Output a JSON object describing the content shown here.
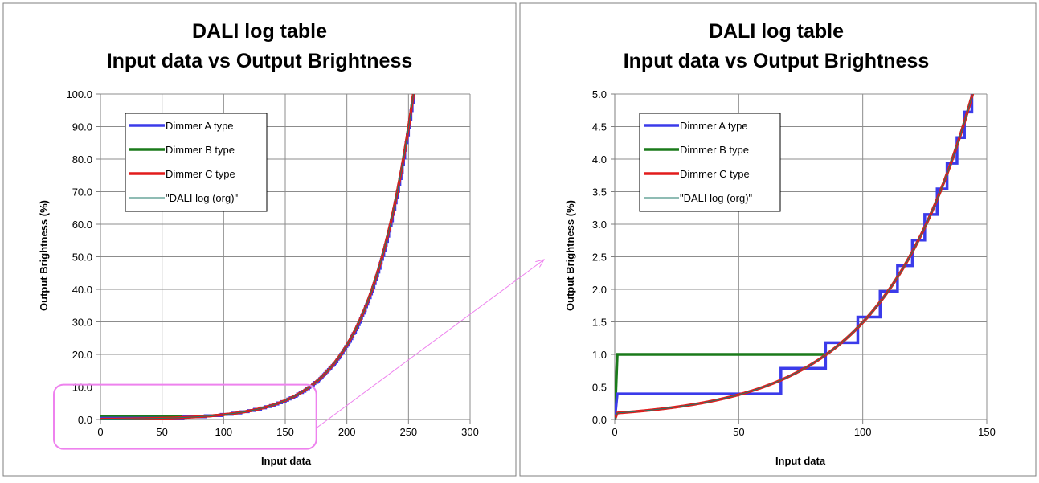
{
  "chart_data": [
    {
      "type": "line",
      "title_lines": [
        "DALI log table",
        "Input data vs Output Brightness"
      ],
      "xlabel": "Input data",
      "ylabel": "Output Brightness (%)",
      "xlim": [
        0,
        300
      ],
      "ylim": [
        0,
        100
      ],
      "x_ticks": [
        "0",
        "50",
        "100",
        "150",
        "200",
        "250",
        "300"
      ],
      "y_ticks": [
        "0.0",
        "10.0",
        "20.0",
        "30.0",
        "40.0",
        "50.0",
        "60.0",
        "70.0",
        "80.0",
        "90.0",
        "100.0"
      ],
      "grid": true,
      "legend_position": "top-left",
      "series": [
        {
          "name": "Dimmer A type",
          "color": "#3b3bea",
          "kind": "dimmerA",
          "x": [
            0,
            1,
            66,
            85,
            97,
            254
          ],
          "y": [
            0,
            0.39,
            0.78,
            1.18,
            1.57,
            100.0
          ]
        },
        {
          "name": "Dimmer B type",
          "color": "#1a7a1a",
          "kind": "dimmerB",
          "x": [
            0,
            1,
            85,
            254
          ],
          "y": [
            0,
            1.0,
            1.0,
            100.0
          ]
        },
        {
          "name": "Dimmer C type",
          "color": "#e21c1c",
          "kind": "dimmerC",
          "x": [
            0,
            1,
            50,
            100,
            150,
            200,
            254
          ],
          "y": [
            0,
            0.1,
            0.32,
            1.0,
            3.2,
            10.1,
            100.0
          ]
        },
        {
          "name": "\"DALI log (org)\"",
          "color": "#1f7a6a",
          "kind": "log",
          "x": [
            0,
            1,
            50,
            100,
            150,
            200,
            254
          ],
          "y": [
            0,
            0.1,
            0.32,
            1.0,
            3.2,
            10.1,
            100.0
          ]
        }
      ]
    },
    {
      "type": "line",
      "title_lines": [
        "DALI log table",
        "Input data vs Output Brightness"
      ],
      "xlabel": "Input data",
      "ylabel": "Output Brightness (%)",
      "xlim": [
        0,
        150
      ],
      "ylim": [
        0,
        5
      ],
      "x_ticks": [
        "0",
        "50",
        "100",
        "150"
      ],
      "y_ticks": [
        "0.0",
        "0.5",
        "1.0",
        "1.5",
        "2.0",
        "2.5",
        "3.0",
        "3.5",
        "4.0",
        "4.5",
        "5.0"
      ],
      "grid": true,
      "legend_position": "top-left",
      "series": [
        {
          "name": "Dimmer A type",
          "color": "#3b3bea",
          "kind": "dimmerA",
          "x": [
            0,
            1,
            66,
            85,
            97,
            104,
            110,
            115,
            120,
            125,
            130,
            134,
            137,
            140,
            143
          ],
          "y": [
            0,
            0.39,
            0.78,
            1.18,
            1.57,
            1.96,
            2.35,
            2.75,
            3.14,
            3.53,
            3.92,
            4.31,
            4.71,
            5.0,
            5.0
          ]
        },
        {
          "name": "Dimmer B type",
          "color": "#1a7a1a",
          "kind": "dimmerB",
          "x": [
            0,
            1,
            85,
            88
          ],
          "y": [
            0,
            1.0,
            1.0,
            1.2
          ]
        },
        {
          "name": "Dimmer C type",
          "color": "#e21c1c",
          "kind": "dimmerC",
          "x": [
            0,
            1,
            50,
            100,
            125,
            144
          ],
          "y": [
            0,
            0.1,
            0.32,
            1.0,
            1.78,
            5.0
          ]
        },
        {
          "name": "\"DALI log (org)\"",
          "color": "#1f7a6a",
          "kind": "log",
          "x": [
            0,
            1,
            50,
            100,
            125,
            144
          ],
          "y": [
            0,
            0.1,
            0.32,
            1.0,
            1.78,
            5.0
          ]
        }
      ]
    }
  ],
  "zoom_highlight": {
    "color": "#ee82ee",
    "region_x": [
      0,
      170
    ],
    "region_y": [
      0,
      7.5
    ]
  }
}
